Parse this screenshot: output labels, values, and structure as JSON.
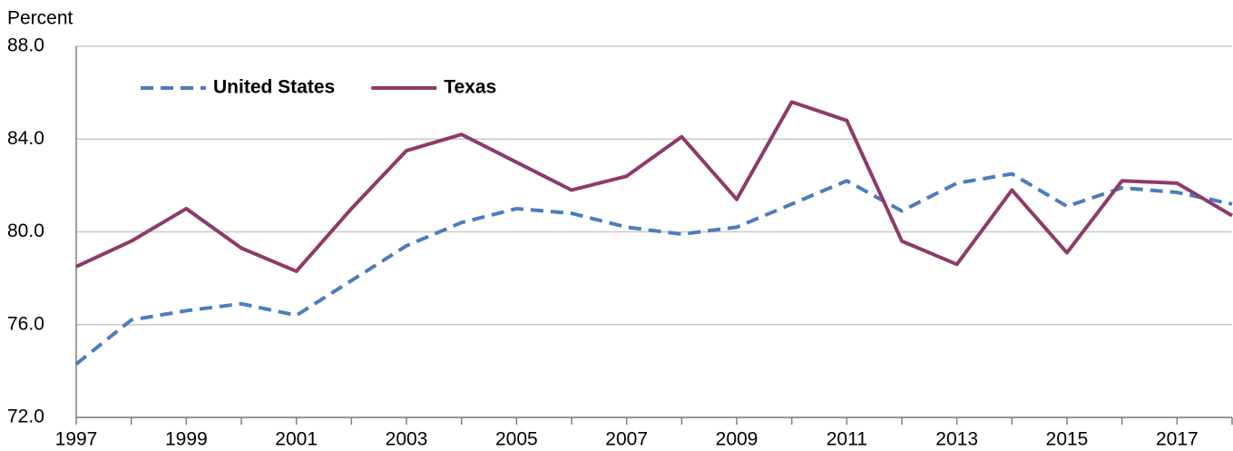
{
  "chart_data": {
    "type": "line",
    "y_axis_label": "Percent",
    "x": [
      1997,
      1998,
      1999,
      2000,
      2001,
      2002,
      2003,
      2004,
      2005,
      2006,
      2007,
      2008,
      2009,
      2010,
      2011,
      2012,
      2013,
      2014,
      2015,
      2016,
      2017,
      2018
    ],
    "series": [
      {
        "name": "United States",
        "color": "#4a7ebb",
        "dashed": true,
        "values": [
          74.3,
          76.2,
          76.6,
          76.9,
          76.4,
          77.9,
          79.4,
          80.4,
          81.0,
          80.8,
          80.2,
          79.9,
          80.2,
          81.2,
          82.2,
          80.9,
          82.1,
          82.5,
          81.1,
          81.9,
          81.7,
          81.2
        ]
      },
      {
        "name": "Texas",
        "color": "#8e3a6a",
        "dashed": false,
        "values": [
          78.5,
          79.6,
          81.0,
          79.3,
          78.3,
          81.0,
          83.5,
          84.2,
          83.0,
          81.8,
          82.4,
          84.1,
          81.4,
          85.6,
          84.8,
          79.6,
          78.6,
          81.8,
          79.1,
          82.2,
          82.1,
          80.7
        ]
      }
    ],
    "xlim": [
      1997,
      2018
    ],
    "xticks": [
      1997,
      1999,
      2001,
      2003,
      2005,
      2007,
      2009,
      2011,
      2013,
      2015,
      2017
    ],
    "ylim": [
      72,
      88
    ],
    "yticks": [
      {
        "value": 72,
        "label": "72.0"
      },
      {
        "value": 76,
        "label": "76.0"
      },
      {
        "value": 80,
        "label": "80.0"
      },
      {
        "value": 84,
        "label": "84.0"
      },
      {
        "value": 88,
        "label": "88.0"
      }
    ],
    "grid": true,
    "legend": "top-left"
  }
}
